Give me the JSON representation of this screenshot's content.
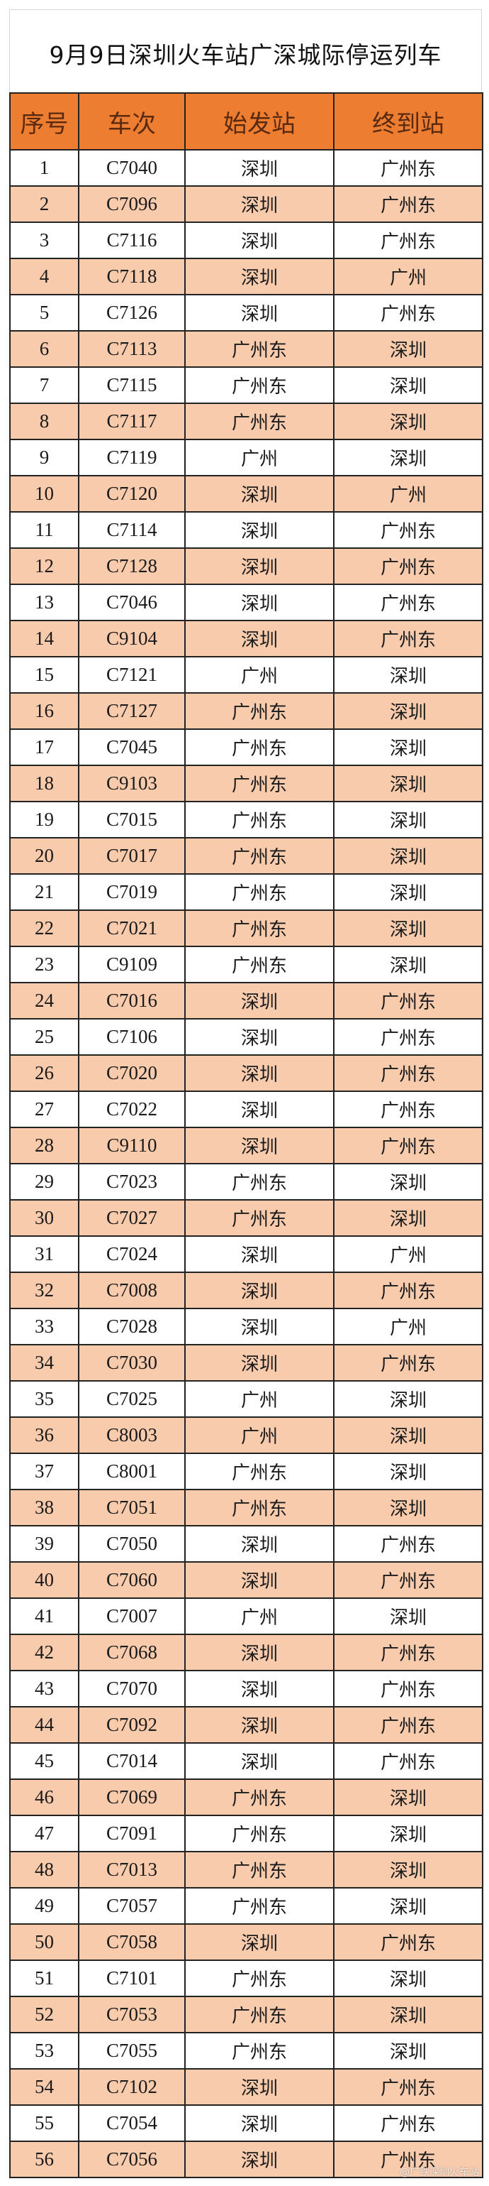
{
  "title": "9月9日深圳火车站广深城际停运列车",
  "colors": {
    "header_bg": "#ED7D31",
    "alt_row_bg": "#F8CBAD",
    "border": "#222222"
  },
  "table": {
    "headers": [
      "序号",
      "车次",
      "始发站",
      "终到站"
    ],
    "rows": [
      [
        "1",
        "C7040",
        "深圳",
        "广州东"
      ],
      [
        "2",
        "C7096",
        "深圳",
        "广州东"
      ],
      [
        "3",
        "C7116",
        "深圳",
        "广州东"
      ],
      [
        "4",
        "C7118",
        "深圳",
        "广州"
      ],
      [
        "5",
        "C7126",
        "深圳",
        "广州东"
      ],
      [
        "6",
        "C7113",
        "广州东",
        "深圳"
      ],
      [
        "7",
        "C7115",
        "广州东",
        "深圳"
      ],
      [
        "8",
        "C7117",
        "广州东",
        "深圳"
      ],
      [
        "9",
        "C7119",
        "广州",
        "深圳"
      ],
      [
        "10",
        "C7120",
        "深圳",
        "广州"
      ],
      [
        "11",
        "C7114",
        "深圳",
        "广州东"
      ],
      [
        "12",
        "C7128",
        "深圳",
        "广州东"
      ],
      [
        "13",
        "C7046",
        "深圳",
        "广州东"
      ],
      [
        "14",
        "C9104",
        "深圳",
        "广州东"
      ],
      [
        "15",
        "C7121",
        "广州",
        "深圳"
      ],
      [
        "16",
        "C7127",
        "广州东",
        "深圳"
      ],
      [
        "17",
        "C7045",
        "广州东",
        "深圳"
      ],
      [
        "18",
        "C9103",
        "广州东",
        "深圳"
      ],
      [
        "19",
        "C7015",
        "广州东",
        "深圳"
      ],
      [
        "20",
        "C7017",
        "广州东",
        "深圳"
      ],
      [
        "21",
        "C7019",
        "广州东",
        "深圳"
      ],
      [
        "22",
        "C7021",
        "广州东",
        "深圳"
      ],
      [
        "23",
        "C9109",
        "广州东",
        "深圳"
      ],
      [
        "24",
        "C7016",
        "深圳",
        "广州东"
      ],
      [
        "25",
        "C7106",
        "深圳",
        "广州东"
      ],
      [
        "26",
        "C7020",
        "深圳",
        "广州东"
      ],
      [
        "27",
        "C7022",
        "深圳",
        "广州东"
      ],
      [
        "28",
        "C9110",
        "深圳",
        "广州东"
      ],
      [
        "29",
        "C7023",
        "广州东",
        "深圳"
      ],
      [
        "30",
        "C7027",
        "广州东",
        "深圳"
      ],
      [
        "31",
        "C7024",
        "深圳",
        "广州"
      ],
      [
        "32",
        "C7008",
        "深圳",
        "广州东"
      ],
      [
        "33",
        "C7028",
        "深圳",
        "广州"
      ],
      [
        "34",
        "C7030",
        "深圳",
        "广州东"
      ],
      [
        "35",
        "C7025",
        "广州",
        "深圳"
      ],
      [
        "36",
        "C8003",
        "广州",
        "深圳"
      ],
      [
        "37",
        "C8001",
        "广州东",
        "深圳"
      ],
      [
        "38",
        "C7051",
        "广州东",
        "深圳"
      ],
      [
        "39",
        "C7050",
        "深圳",
        "广州东"
      ],
      [
        "40",
        "C7060",
        "深圳",
        "广州东"
      ],
      [
        "41",
        "C7007",
        "广州",
        "深圳"
      ],
      [
        "42",
        "C7068",
        "深圳",
        "广州东"
      ],
      [
        "43",
        "C7070",
        "深圳",
        "广州东"
      ],
      [
        "44",
        "C7092",
        "深圳",
        "广州东"
      ],
      [
        "45",
        "C7014",
        "深圳",
        "广州东"
      ],
      [
        "46",
        "C7069",
        "广州东",
        "深圳"
      ],
      [
        "47",
        "C7091",
        "广州东",
        "深圳"
      ],
      [
        "48",
        "C7013",
        "广州东",
        "深圳"
      ],
      [
        "49",
        "C7057",
        "广州东",
        "深圳"
      ],
      [
        "50",
        "C7058",
        "深圳",
        "广州东"
      ],
      [
        "51",
        "C7101",
        "广州东",
        "深圳"
      ],
      [
        "52",
        "C7053",
        "广州东",
        "深圳"
      ],
      [
        "53",
        "C7055",
        "广州东",
        "深圳"
      ],
      [
        "54",
        "C7102",
        "深圳",
        "广州东"
      ],
      [
        "55",
        "C7054",
        "深圳",
        "广州东"
      ],
      [
        "56",
        "C7056",
        "深圳",
        "广州东"
      ]
    ]
  },
  "watermark": "@广铁深圳火车站"
}
